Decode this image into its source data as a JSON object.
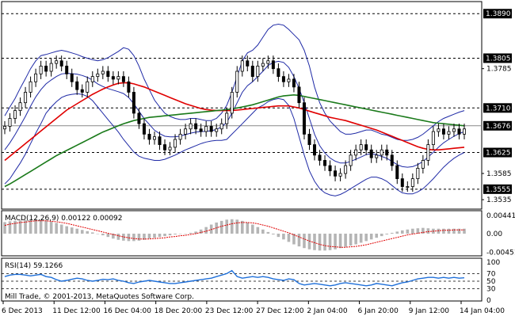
{
  "chart_data": [
    {
      "type": "candlestick",
      "panel": "price",
      "colors": {
        "background": "#ffffff",
        "candle": "#000000",
        "bollinger_bands": "#1f2aa6",
        "ma_red": "#e00000",
        "ma_green": "#1a7a1a",
        "level_lines": "#000000"
      },
      "y_ticks": [
        "1.3890",
        "1.3805",
        "1.3785",
        "1.3710",
        "1.3676",
        "1.3625",
        "1.3585",
        "1.3555",
        "1.3535"
      ],
      "ylim": [
        1.352,
        1.391
      ],
      "price_levels": [
        1.389,
        1.3805,
        1.371,
        1.3625,
        1.3555
      ],
      "current_price": 1.3676,
      "x_labels": [
        "6 Dec 2013",
        "11 Dec 12:00",
        "16 Dec 04:00",
        "18 Dec 20:00",
        "23 Dec 12:00",
        "27 Dec 12:00",
        "2 Jan 04:00",
        "6 Jan 20:00",
        "9 Jan 12:00",
        "14 Jan 04:00"
      ],
      "close": [
        1.3675,
        1.369,
        1.3705,
        1.372,
        1.374,
        1.376,
        1.3775,
        1.379,
        1.378,
        1.3795,
        1.38,
        1.379,
        1.3775,
        1.376,
        1.3745,
        1.374,
        1.376,
        1.377,
        1.3775,
        1.378,
        1.377,
        1.3765,
        1.377,
        1.376,
        1.374,
        1.37,
        1.368,
        1.366,
        1.365,
        1.3655,
        1.364,
        1.363,
        1.3635,
        1.365,
        1.366,
        1.367,
        1.368,
        1.367,
        1.3665,
        1.3675,
        1.3665,
        1.367,
        1.368,
        1.37,
        1.374,
        1.378,
        1.38,
        1.379,
        1.377,
        1.379,
        1.3795,
        1.38,
        1.3785,
        1.377,
        1.376,
        1.3765,
        1.375,
        1.372,
        1.366,
        1.364,
        1.362,
        1.361,
        1.36,
        1.359,
        1.358,
        1.3585,
        1.36,
        1.362,
        1.363,
        1.364,
        1.363,
        1.3615,
        1.362,
        1.363,
        1.362,
        1.36,
        1.3575,
        1.356,
        1.356,
        1.3575,
        1.3595,
        1.361,
        1.364,
        1.3665,
        1.367,
        1.366,
        1.3665,
        1.367,
        1.366,
        1.367
      ],
      "upper_band": [
        1.3695,
        1.3712,
        1.3728,
        1.3748,
        1.3766,
        1.3785,
        1.38,
        1.381,
        1.3812,
        1.3815,
        1.3818,
        1.382,
        1.3818,
        1.3815,
        1.3812,
        1.3808,
        1.3805,
        1.3802,
        1.38,
        1.3802,
        1.3806,
        1.3812,
        1.3818,
        1.3825,
        1.3822,
        1.381,
        1.379,
        1.3765,
        1.3745,
        1.3725,
        1.3712,
        1.37,
        1.3694,
        1.369,
        1.3688,
        1.3688,
        1.369,
        1.369,
        1.3688,
        1.3686,
        1.3686,
        1.369,
        1.37,
        1.3715,
        1.374,
        1.377,
        1.38,
        1.3815,
        1.382,
        1.383,
        1.3845,
        1.386,
        1.3868,
        1.387,
        1.3868,
        1.386,
        1.385,
        1.384,
        1.382,
        1.379,
        1.375,
        1.372,
        1.37,
        1.3685,
        1.3675,
        1.3665,
        1.366,
        1.366,
        1.3662,
        1.3665,
        1.3668,
        1.3668,
        1.3664,
        1.366,
        1.3658,
        1.3654,
        1.365,
        1.3648,
        1.3648,
        1.365,
        1.3654,
        1.366,
        1.3668,
        1.3676,
        1.3684,
        1.369,
        1.3694,
        1.3698,
        1.3702,
        1.3705
      ],
      "lower_band": [
        1.3565,
        1.3575,
        1.359,
        1.3605,
        1.3622,
        1.3642,
        1.3662,
        1.368,
        1.37,
        1.3712,
        1.3722,
        1.373,
        1.3734,
        1.3736,
        1.3737,
        1.3736,
        1.3732,
        1.3724,
        1.3712,
        1.37,
        1.3688,
        1.3676,
        1.3664,
        1.365,
        1.3638,
        1.3626,
        1.3618,
        1.3614,
        1.3612,
        1.361,
        1.361,
        1.3612,
        1.3616,
        1.362,
        1.3625,
        1.363,
        1.3634,
        1.3638,
        1.3642,
        1.3645,
        1.3647,
        1.3648,
        1.3648,
        1.365,
        1.366,
        1.367,
        1.368,
        1.369,
        1.37,
        1.371,
        1.3715,
        1.3722,
        1.3726,
        1.3728,
        1.3726,
        1.3715,
        1.369,
        1.3655,
        1.362,
        1.359,
        1.357,
        1.3556,
        1.3548,
        1.3544,
        1.3542,
        1.3545,
        1.355,
        1.3556,
        1.3562,
        1.3568,
        1.3574,
        1.3578,
        1.3578,
        1.3575,
        1.357,
        1.3562,
        1.3554,
        1.3548,
        1.3546,
        1.3546,
        1.355,
        1.3556,
        1.3565,
        1.3575,
        1.3586,
        1.3597,
        1.3606,
        1.3614,
        1.362,
        1.3625
      ],
      "ma_red": [
        1.361,
        1.3618,
        1.3626,
        1.3634,
        1.3642,
        1.365,
        1.3658,
        1.3666,
        1.3674,
        1.3682,
        1.369,
        1.3698,
        1.3706,
        1.3712,
        1.3718,
        1.3724,
        1.373,
        1.3736,
        1.3741,
        1.3746,
        1.375,
        1.3754,
        1.3757,
        1.3758,
        1.3758,
        1.3756,
        1.3753,
        1.375,
        1.3746,
        1.3742,
        1.3738,
        1.3734,
        1.373,
        1.3726,
        1.3722,
        1.3718,
        1.3715,
        1.3712,
        1.3709,
        1.3707,
        1.3706,
        1.3705,
        1.3705,
        1.3705,
        1.3705,
        1.3706,
        1.3707,
        1.3708,
        1.3709,
        1.371,
        1.3711,
        1.3712,
        1.3713,
        1.3714,
        1.3714,
        1.3714,
        1.3712,
        1.371,
        1.3707,
        1.3704,
        1.3701,
        1.3698,
        1.3695,
        1.3692,
        1.369,
        1.3688,
        1.3686,
        1.3683,
        1.368,
        1.3677,
        1.3674,
        1.3671,
        1.3668,
        1.3664,
        1.366,
        1.3656,
        1.3652,
        1.3648,
        1.3644,
        1.364,
        1.3636,
        1.3633,
        1.3631,
        1.363,
        1.363,
        1.3631,
        1.3632,
        1.3633,
        1.3634,
        1.3635
      ],
      "ma_green": [
        1.356,
        1.3565,
        1.3571,
        1.3577,
        1.3583,
        1.3589,
        1.3595,
        1.3601,
        1.3607,
        1.3613,
        1.3619,
        1.3624,
        1.3629,
        1.3634,
        1.3639,
        1.3644,
        1.3649,
        1.3654,
        1.3659,
        1.3664,
        1.3668,
        1.3672,
        1.3676,
        1.368,
        1.3683,
        1.3686,
        1.3688,
        1.369,
        1.3692,
        1.3693,
        1.3694,
        1.3695,
        1.3696,
        1.3697,
        1.3698,
        1.3699,
        1.37,
        1.3701,
        1.3702,
        1.3703,
        1.3704,
        1.3705,
        1.3706,
        1.3707,
        1.3708,
        1.371,
        1.3712,
        1.3714,
        1.3716,
        1.3719,
        1.3722,
        1.3725,
        1.3728,
        1.3731,
        1.3733,
        1.3734,
        1.3735,
        1.3734,
        1.3732,
        1.373,
        1.3728,
        1.3726,
        1.3724,
        1.3722,
        1.372,
        1.3718,
        1.3716,
        1.3714,
        1.3712,
        1.371,
        1.3708,
        1.3706,
        1.3704,
        1.3702,
        1.37,
        1.3698,
        1.3696,
        1.3694,
        1.3692,
        1.369,
        1.3688,
        1.3686,
        1.3684,
        1.3682,
        1.3681,
        1.368,
        1.3679,
        1.3678,
        1.3677,
        1.3676
      ]
    },
    {
      "type": "bar",
      "panel": "macd",
      "label": "MACD(12,26,9) 0.00122 0.00092",
      "y_ticks": [
        "0.00441",
        "0.00",
        "-0.00451"
      ],
      "ylim": [
        -0.005,
        0.0048
      ],
      "colors": {
        "histogram": "#b5b5b5",
        "signal": "#e00000"
      },
      "histogram": [
        0.0028,
        0.003,
        0.0031,
        0.0032,
        0.0033,
        0.0034,
        0.0034,
        0.0033,
        0.0031,
        0.0029,
        0.0026,
        0.0022,
        0.0018,
        0.0015,
        0.0012,
        0.0009,
        0.0006,
        0.0003,
        0.0,
        -0.0004,
        -0.0008,
        -0.0012,
        -0.0015,
        -0.0017,
        -0.0018,
        -0.0018,
        -0.0017,
        -0.0015,
        -0.0012,
        -0.001,
        -0.0008,
        -0.0006,
        -0.0004,
        -0.0002,
        -0.0001,
        0.0,
        0.0002,
        0.0005,
        0.001,
        0.0016,
        0.0022,
        0.0027,
        0.0031,
        0.0034,
        0.0035,
        0.0034,
        0.0031,
        0.0027,
        0.0022,
        0.0016,
        0.001,
        0.0004,
        -0.0002,
        -0.0008,
        -0.0014,
        -0.002,
        -0.0026,
        -0.0031,
        -0.0035,
        -0.0038,
        -0.004,
        -0.0041,
        -0.0041,
        -0.004,
        -0.0038,
        -0.0035,
        -0.0032,
        -0.0029,
        -0.0026,
        -0.0022,
        -0.0018,
        -0.0014,
        -0.001,
        -0.0006,
        -0.0002,
        0.0002,
        0.0005,
        0.0008,
        0.001,
        0.0012,
        0.0013,
        0.0014,
        0.0013,
        0.0012,
        0.0012,
        0.0012,
        0.0012,
        0.0012,
        0.0012,
        0.0012
      ],
      "signal": [
        0.002,
        0.0023,
        0.0025,
        0.0027,
        0.0028,
        0.003,
        0.0031,
        0.0031,
        0.0031,
        0.003,
        0.0029,
        0.0027,
        0.0025,
        0.0022,
        0.0019,
        0.0016,
        0.0013,
        0.001,
        0.0007,
        0.0004,
        0.0001,
        -0.0002,
        -0.0005,
        -0.0008,
        -0.001,
        -0.0012,
        -0.0013,
        -0.0013,
        -0.0013,
        -0.0012,
        -0.0011,
        -0.001,
        -0.0008,
        -0.0007,
        -0.0005,
        -0.0004,
        -0.0002,
        0.0,
        0.0003,
        0.0006,
        0.001,
        0.0014,
        0.0018,
        0.0021,
        0.0024,
        0.0026,
        0.0027,
        0.0027,
        0.0026,
        0.0024,
        0.0021,
        0.0018,
        0.0014,
        0.001,
        0.0006,
        0.0002,
        -0.0003,
        -0.0008,
        -0.0013,
        -0.0018,
        -0.0022,
        -0.0026,
        -0.0029,
        -0.0031,
        -0.0032,
        -0.0033,
        -0.0033,
        -0.0032,
        -0.0031,
        -0.0029,
        -0.0027,
        -0.0024,
        -0.0021,
        -0.0018,
        -0.0015,
        -0.0012,
        -0.0009,
        -0.0006,
        -0.0003,
        -0.0001,
        0.0001,
        0.0003,
        0.0005,
        0.0006,
        0.0007,
        0.0008,
        0.0008,
        0.0009,
        0.0009,
        0.0009
      ]
    },
    {
      "type": "line",
      "panel": "rsi",
      "label": "RSI(14) 59.1266",
      "y_ticks": [
        "100",
        "70",
        "50",
        "30",
        "0"
      ],
      "levels": [
        70,
        50,
        30
      ],
      "ylim": [
        0,
        100
      ],
      "colors": {
        "line": "#1e6fd9",
        "levels": "#000000"
      },
      "values": [
        62,
        66,
        68,
        68,
        66,
        64,
        66,
        68,
        62,
        60,
        54,
        50,
        52,
        55,
        58,
        56,
        52,
        50,
        52,
        55,
        54,
        56,
        52,
        50,
        46,
        44,
        48,
        50,
        52,
        50,
        48,
        46,
        44,
        44,
        46,
        48,
        50,
        52,
        54,
        56,
        58,
        62,
        66,
        70,
        78,
        62,
        58,
        60,
        62,
        60,
        62,
        60,
        56,
        54,
        52,
        56,
        54,
        44,
        40,
        42,
        44,
        42,
        40,
        38,
        40,
        44,
        46,
        44,
        42,
        40,
        38,
        40,
        44,
        42,
        40,
        38,
        42,
        46,
        48,
        52,
        56,
        58,
        60,
        60,
        58,
        60,
        58,
        60,
        58,
        59
      ]
    }
  ],
  "footer": {
    "copyright": "Mill Trade, © 2001-2013, MetaQuotes Software Corp."
  }
}
